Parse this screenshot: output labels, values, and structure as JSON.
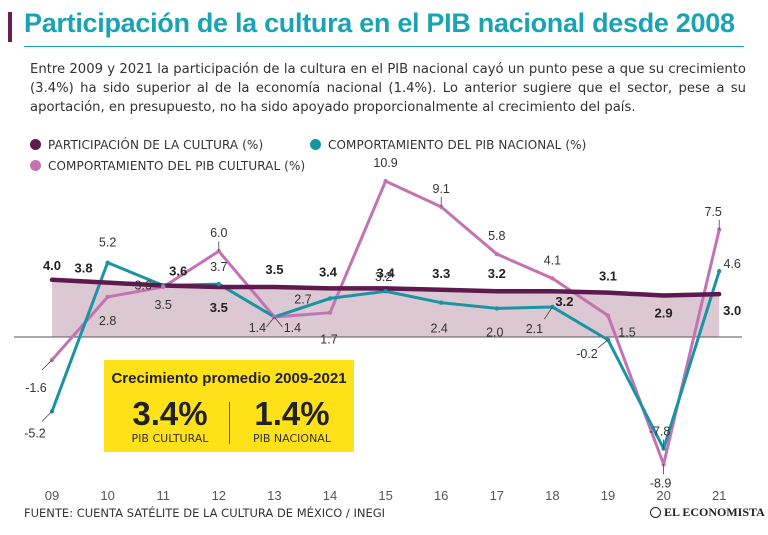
{
  "title": "Participación de la cultura en el PIB nacional desde 2008",
  "subtitle": "Entre 2009 y 2021 la participación de la cultura en el PIB nacional cayó un punto pese a que su crecimiento (3.4%) ha sido superior al de la economía nacional (1.4%). Lo anterior sugiere que el sector, pese a su aportación, en presupuesto, no ha sido apoyado proporcionalmente al crecimiento del país.",
  "legend": {
    "participation": "PARTICIPACIÓN DE LA CULTURA (%)",
    "national": "COMPORTAMIENTO DEL PIB NACIONAL (%)",
    "cultural": "COMPORTAMIENTO DEL PIB CULTURAL (%)"
  },
  "colors": {
    "participation": "#5e1a4e",
    "national": "#1a93a3",
    "cultural": "#c373b2",
    "band": "#cfb6c3",
    "title": "#1aa3b3",
    "box": "#ffe11a"
  },
  "chart_data": {
    "type": "line",
    "categories": [
      "09",
      "10",
      "11",
      "12",
      "13",
      "14",
      "15",
      "16",
      "17",
      "18",
      "19",
      "20",
      "21"
    ],
    "series": [
      {
        "name": "PARTICIPACIÓN DE LA CULTURA (%)",
        "key": "participation",
        "values": [
          4.0,
          3.8,
          3.6,
          3.5,
          3.5,
          3.4,
          3.4,
          3.3,
          3.2,
          3.2,
          3.1,
          2.9,
          3.0
        ],
        "labels": [
          "4.0",
          "3.8",
          "3.6",
          "3.5",
          "3.5",
          "3.4",
          "3.4",
          "3.3",
          "3.2",
          "3.2",
          "3.1",
          "2.9",
          "3.0"
        ]
      },
      {
        "name": "COMPORTAMIENTO DEL PIB NACIONAL (%)",
        "key": "national",
        "values": [
          -5.2,
          5.2,
          3.6,
          3.7,
          1.4,
          2.7,
          3.2,
          2.4,
          2.0,
          2.1,
          -0.2,
          -7.8,
          4.6
        ],
        "labels": [
          "-5.2",
          "5.2",
          "3.6",
          "3.7",
          "1.4",
          "2.7",
          "3.2",
          "2.4",
          "2.0",
          "2.1",
          "-0.2",
          "-7.8",
          "4.6"
        ]
      },
      {
        "name": "COMPORTAMIENTO DEL PIB CULTURAL (%)",
        "key": "cultural",
        "values": [
          -1.6,
          2.8,
          3.5,
          6.0,
          1.4,
          1.7,
          10.9,
          9.1,
          5.8,
          4.1,
          1.5,
          -8.9,
          7.5
        ],
        "labels": [
          "-1.6",
          "2.8",
          "3.5",
          "6.0",
          "1.4",
          "1.7",
          "10.9",
          "9.1",
          "5.8",
          "4.1",
          "1.5",
          "-8.9",
          "7.5"
        ]
      }
    ],
    "ylim": [
      -10,
      12
    ],
    "zero_line": true,
    "xlabel": "",
    "ylabel": ""
  },
  "avg_box": {
    "title": "Crecimiento promedio 2009-2021",
    "cultural_value": "3.4%",
    "cultural_label": "PIB CULTURAL",
    "national_value": "1.4%",
    "national_label": "PIB NACIONAL"
  },
  "source": "FUENTE: CUENTA SATÉLITE DE LA CULTURA DE MÉXICO / INEGI",
  "logo": "EL ECONOMISTA"
}
